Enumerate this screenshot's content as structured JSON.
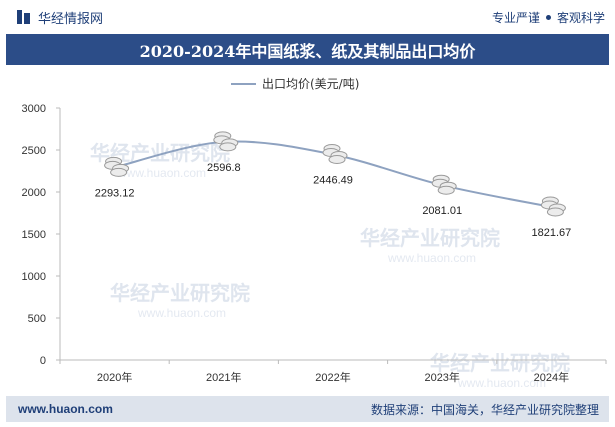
{
  "brand": {
    "name": "华经情报网"
  },
  "tagline": {
    "left": "专业严谨",
    "right": "客观科学"
  },
  "colors": {
    "primary": "#1f3f78",
    "title_bg": "#2c4d88",
    "footer_bg": "#dde3ec",
    "line": "#8ea2c0",
    "marker": "#c9c9c9",
    "axis": "#bbbbbb"
  },
  "watermark": {
    "text": "华经产业研究院",
    "url": "www.huaon.com"
  },
  "chart_data": {
    "type": "line",
    "title": "2020-2024年中国纸浆、纸及其制品出口均价",
    "categories": [
      "2020年",
      "2021年",
      "2022年",
      "2023年",
      "2024年"
    ],
    "series": [
      {
        "name": "出口均价(美元/吨)",
        "values": [
          2293.12,
          2596.8,
          2446.49,
          2081.01,
          1821.67
        ]
      }
    ],
    "data_labels": [
      "2293.12",
      "2596.8",
      "2446.49",
      "2081.01",
      "1821.67"
    ],
    "y_ticks": [
      "0",
      "500",
      "1000",
      "1500",
      "2000",
      "2500",
      "3000"
    ],
    "ylim": [
      0,
      3000
    ],
    "xlabel": "",
    "ylabel": "",
    "grid": false,
    "legend_position": "top"
  },
  "footer": {
    "site": "www.huaon.com",
    "source": "数据来源：中国海关，华经产业研究院整理"
  }
}
